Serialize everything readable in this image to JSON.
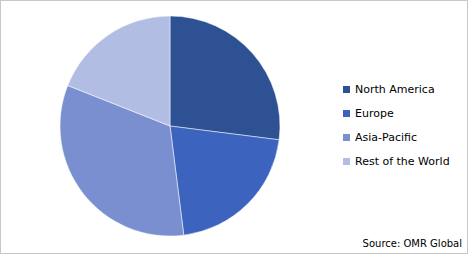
{
  "chart_data": {
    "type": "pie",
    "categories": [
      "North America",
      "Europe",
      "Asia-Pacific",
      "Rest of the World"
    ],
    "values": [
      27,
      21,
      33,
      19
    ],
    "colors": [
      "#2e5194",
      "#3c64be",
      "#7a8fd0",
      "#b2bde3"
    ],
    "legend": "right",
    "source": "Source: OMR Global"
  }
}
